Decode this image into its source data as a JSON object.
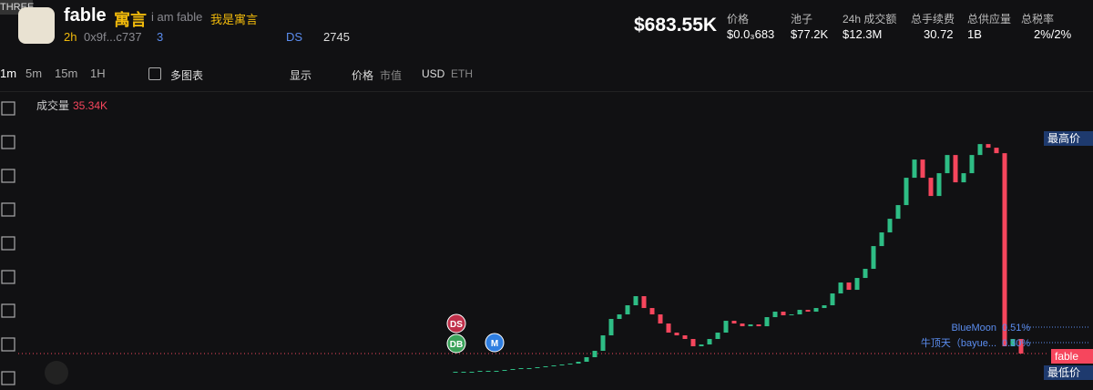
{
  "header": {
    "badge": "THREE",
    "name": "fable",
    "name_cn": "寓言",
    "desc": "i am fable",
    "desc_cn": "我是寓言",
    "age": "2h",
    "address": "0x9f...c737",
    "holders": "3",
    "ds": "DS",
    "views": "2745",
    "mcap": "$683.55K",
    "stats": [
      {
        "label": "价格",
        "value": "$0.0₃683"
      },
      {
        "label": "池子",
        "value": "$77.2K"
      },
      {
        "label": "24h 成交额",
        "value": "$12.3M"
      },
      {
        "label": "总手续费",
        "value": "30.72"
      },
      {
        "label": "总供应量",
        "value": "1B"
      },
      {
        "label": "总税率",
        "value": "2%/2%"
      }
    ]
  },
  "toolbar": {
    "intervals": [
      "1m",
      "5m",
      "15m",
      "1H"
    ],
    "multi": "多图表",
    "display": "显示",
    "price": "价格",
    "mcap": "市值",
    "usd": "USD",
    "eth": "ETH"
  },
  "chart": {
    "volume_label": "成交量",
    "volume_value": "35.34K",
    "high_label": "最高价",
    "low_label": "最低价",
    "current_label": "fable",
    "markers": [
      "DS",
      "DB",
      "M"
    ],
    "lines": [
      {
        "label": "BlueMoon",
        "pct": "0.51%"
      },
      {
        "label": "牛顶天（bayue...",
        "pct": "0.30%"
      }
    ]
  },
  "chart_data": {
    "type": "candlestick",
    "open": 176,
    "up_color": "#2ebd85",
    "down_color": "#f6465d",
    "ylim": [
      0,
      12000
    ],
    "values": [
      176,
      176,
      176,
      221,
      221,
      221,
      265,
      309,
      353,
      353,
      397,
      441,
      485,
      529,
      573,
      662,
      882,
      1191,
      1940,
      2734,
      2955,
      3396,
      3837,
      3263,
      2955,
      2514,
      2073,
      1940,
      1764,
      1411,
      1499,
      1764,
      2073,
      2646,
      2514,
      2381,
      2470,
      2381,
      2822,
      3087,
      2911,
      2955,
      3175,
      3087,
      3263,
      3396,
      3969,
      4498,
      4145,
      4719,
      5160,
      6262,
      6924,
      7585,
      8247,
      9570,
      10452,
      9570,
      8688,
      9791,
      10672,
      9349,
      9791,
      10672,
      11201,
      11025,
      10760,
      1411,
      1764,
      1058
    ]
  }
}
